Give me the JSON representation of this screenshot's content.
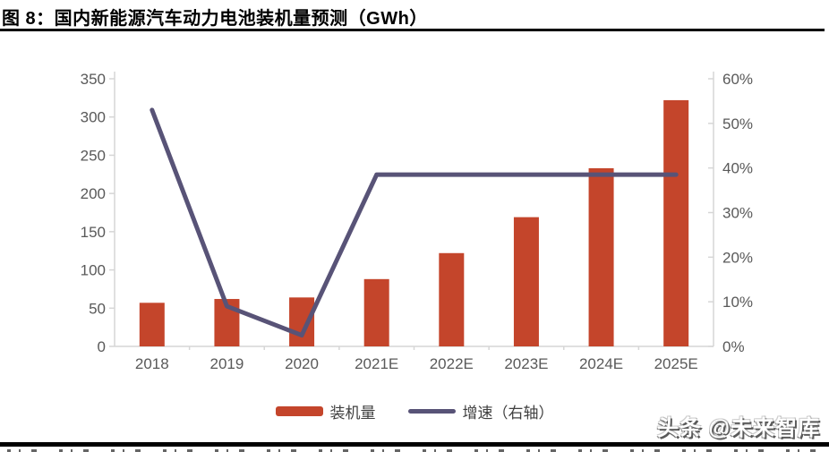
{
  "page": {
    "title": "图 8：国内新能源汽车动力电池装机量预测（GWh）",
    "watermark": "头条 @未来智库"
  },
  "chart_data": {
    "type": "bar",
    "title": "国内新能源汽车动力电池装机量预测（GWh）",
    "categories": [
      "2018",
      "2019",
      "2020",
      "2021E",
      "2022E",
      "2023E",
      "2024E",
      "2025E"
    ],
    "series": [
      {
        "name": "装机量",
        "type": "bar",
        "axis": "left",
        "color": "#c4452b",
        "values": [
          57,
          62,
          64,
          88,
          122,
          169,
          233,
          322
        ]
      },
      {
        "name": "增速（右轴）",
        "type": "line",
        "axis": "right",
        "color": "#585377",
        "values": [
          53,
          9,
          2.5,
          38.5,
          38.5,
          38.5,
          38.5,
          38.5
        ]
      }
    ],
    "left_axis": {
      "min": 0,
      "max": 350,
      "step": 50,
      "tick_labels": [
        "0",
        "50",
        "100",
        "150",
        "200",
        "250",
        "300",
        "350"
      ]
    },
    "right_axis": {
      "min": 0,
      "max": 60,
      "step": 10,
      "unit": "%",
      "tick_labels": [
        "0%",
        "10%",
        "20%",
        "30%",
        "40%",
        "50%",
        "60%"
      ]
    },
    "legend": [
      {
        "label": "装机量",
        "swatch": "rect",
        "color": "#c4452b"
      },
      {
        "label": "增速（右轴）",
        "swatch": "line",
        "color": "#585377"
      }
    ],
    "legend_position": "bottom-center",
    "grid": false,
    "axis_line_color": "#d6d6d6",
    "tick_label_color": "#595959"
  }
}
